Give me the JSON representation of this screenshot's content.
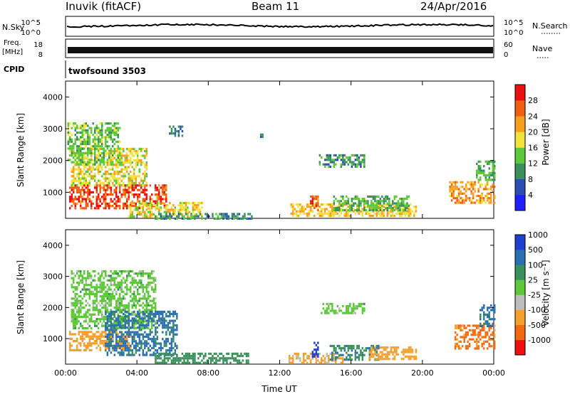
{
  "header": {
    "station": "Inuvik (fitACF)",
    "beam": "Beam 11",
    "date": "24/Apr/2016"
  },
  "status_panel": {
    "nsky_label": "N.Sky",
    "nsky_ticks": [
      "10^5",
      "10^0"
    ],
    "nsearch_label": "N.Search",
    "nsearch_ticks": [
      "10^5",
      "10^0"
    ],
    "freq_label": "Freq.",
    "freq_unit": "[MHz]",
    "freq_ticks": [
      "18",
      "8"
    ],
    "nave_label": "Nave",
    "nave_ticks": [
      "60",
      "0"
    ],
    "cpid_label": "CPID",
    "cpid_value": "twofsound 3503"
  },
  "chart_data": [
    {
      "type": "heatmap",
      "panel": "power",
      "ylabel": "Slant Range [km]",
      "xlabel": "",
      "ylim": [
        180,
        4500
      ],
      "yticks": [
        "1000",
        "2000",
        "3000",
        "4000"
      ],
      "xticks": [
        "00:00",
        "04:00",
        "08:00",
        "12:00",
        "16:00",
        "20:00",
        "00:00"
      ],
      "colorbar": {
        "label": "Power [dB]",
        "ticks": [
          "4",
          "8",
          "12",
          "16",
          "20",
          "24",
          "28"
        ],
        "colors": [
          "#1f1fff",
          "#2a4fb0",
          "#3a8f5a",
          "#5cc83a",
          "#f2e23a",
          "#f7a020",
          "#f06010",
          "#e81010"
        ]
      },
      "regions": [
        {
          "t0": 0.2,
          "t1": 5.6,
          "r0": 500,
          "r1": 1250,
          "v": 27
        },
        {
          "t0": 0.3,
          "t1": 4.5,
          "r0": 1250,
          "r1": 2400,
          "v": 18
        },
        {
          "t0": 0.1,
          "t1": 3.0,
          "r0": 1900,
          "r1": 3200,
          "v": 14
        },
        {
          "t0": 3.5,
          "t1": 7.6,
          "r0": 250,
          "r1": 700,
          "v": 18
        },
        {
          "t0": 5.0,
          "t1": 10.4,
          "r0": 200,
          "r1": 350,
          "v": 10
        },
        {
          "t0": 12.6,
          "t1": 19.6,
          "r0": 250,
          "r1": 650,
          "v": 20
        },
        {
          "t0": 13.7,
          "t1": 14.1,
          "r0": 400,
          "r1": 900,
          "v": 26
        },
        {
          "t0": 15.0,
          "t1": 19.2,
          "r0": 450,
          "r1": 900,
          "v": 12
        },
        {
          "t0": 14.2,
          "t1": 16.7,
          "r0": 1800,
          "r1": 2200,
          "v": 10
        },
        {
          "t0": 21.5,
          "t1": 24.0,
          "r0": 700,
          "r1": 1350,
          "v": 22
        },
        {
          "t0": 23.0,
          "t1": 24.0,
          "r0": 1400,
          "r1": 2000,
          "v": 12
        },
        {
          "t0": 5.8,
          "t1": 6.5,
          "r0": 2700,
          "r1": 3100,
          "v": 8
        },
        {
          "t0": 10.8,
          "t1": 11.0,
          "r0": 2750,
          "r1": 2850,
          "v": 8
        }
      ]
    },
    {
      "type": "heatmap",
      "panel": "velocity",
      "ylabel": "Slant Range [km]",
      "xlabel": "Time UT",
      "ylim": [
        180,
        4500
      ],
      "yticks": [
        "1000",
        "2000",
        "3000",
        "4000"
      ],
      "xticks": [
        "00:00",
        "04:00",
        "08:00",
        "12:00",
        "16:00",
        "20:00",
        "00:00"
      ],
      "colorbar": {
        "label": "Velocity [m s⁻¹]",
        "ticks": [
          "-1000",
          "-500",
          "-100",
          "-25",
          "25",
          "100",
          "500",
          "1000"
        ],
        "colors": [
          "#ee1010",
          "#f26a10",
          "#f4a030",
          "#bdbdbd",
          "#5cc83a",
          "#3a8f5a",
          "#2a6fb0",
          "#1f3fd0"
        ]
      },
      "regions": [
        {
          "t0": 0.2,
          "t1": 3.6,
          "r0": 650,
          "r1": 1250,
          "v": -300
        },
        {
          "t0": 0.3,
          "t1": 5.0,
          "r0": 1300,
          "r1": 3200,
          "v": 0
        },
        {
          "t0": 2.2,
          "t1": 6.2,
          "r0": 500,
          "r1": 1900,
          "v": 120
        },
        {
          "t0": 5.0,
          "t1": 10.2,
          "r0": 200,
          "r1": 550,
          "v": 70
        },
        {
          "t0": 12.5,
          "t1": 15.5,
          "r0": 200,
          "r1": 550,
          "v": -120
        },
        {
          "t0": 13.8,
          "t1": 14.1,
          "r0": 400,
          "r1": 900,
          "v": 900
        },
        {
          "t0": 14.8,
          "t1": 17.5,
          "r0": 300,
          "r1": 800,
          "v": 90
        },
        {
          "t0": 17.0,
          "t1": 19.6,
          "r0": 350,
          "r1": 750,
          "v": -150
        },
        {
          "t0": 14.3,
          "t1": 16.7,
          "r0": 1850,
          "r1": 2150,
          "v": 0
        },
        {
          "t0": 21.8,
          "t1": 24.0,
          "r0": 650,
          "r1": 1450,
          "v": -600
        },
        {
          "t0": 23.2,
          "t1": 24.0,
          "r0": 1400,
          "r1": 2100,
          "v": 110
        }
      ]
    }
  ]
}
